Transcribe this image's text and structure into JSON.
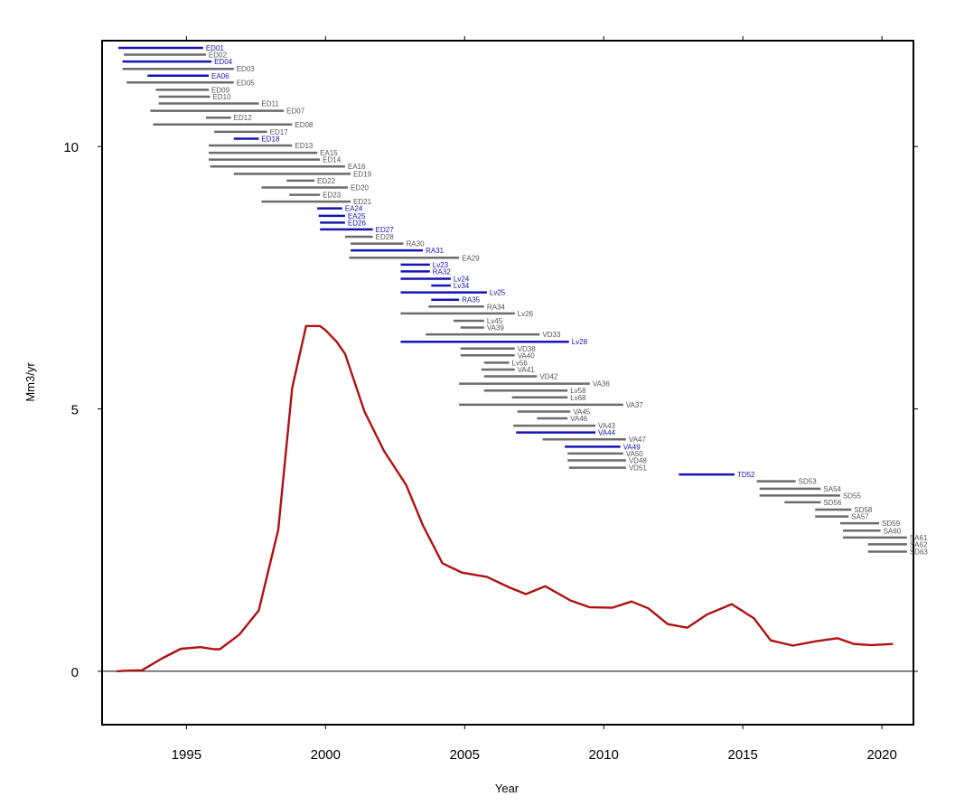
{
  "chart_data": {
    "type": "line",
    "title": "",
    "xlabel": "Year",
    "ylabel": "Mm3/yr",
    "xlim": [
      1992.0,
      2021.1
    ],
    "ylim": [
      -1.0,
      12.0
    ],
    "x_ticks": [
      1995,
      2000,
      2005,
      2010,
      2015,
      2020
    ],
    "x_tick_labels": [
      "1995",
      "2000",
      "2005",
      "2010",
      "2015",
      "2020"
    ],
    "y_ticks": [
      0,
      5,
      10
    ],
    "y_tick_labels": [
      "0",
      "5",
      "10"
    ],
    "zero_line": true,
    "grid": false,
    "colors": {
      "line": "#b01010",
      "blue_interval": "#1414b4",
      "grey_interval": "#6b6b6b",
      "blue_label": "#1414b4",
      "grey_label": "#555555"
    },
    "series": [
      {
        "x": [
          1992.5,
          1992.8,
          1993.4,
          1994.1,
          1994.8,
          1995.5,
          1996.0,
          1996.2,
          1996.9,
          1997.6,
          1998.3,
          1998.8,
          1999.3,
          1999.8,
          2000.0,
          2000.4,
          2000.7,
          2001.4,
          2002.1,
          2002.9,
          2003.5,
          2004.2,
          2004.9,
          2005.8,
          2006.6,
          2007.2,
          2007.9,
          2008.8,
          2009.5,
          2010.3,
          2011.0,
          2011.6,
          2012.3,
          2013.0,
          2013.7,
          2014.6,
          2015.4,
          2016.0,
          2016.8,
          2017.6,
          2018.4,
          2019.0,
          2019.6,
          2020.4
        ],
        "y": [
          0.0,
          0.01,
          0.02,
          0.24,
          0.43,
          0.46,
          0.42,
          0.42,
          0.7,
          1.16,
          2.7,
          5.4,
          6.58,
          6.58,
          6.5,
          6.28,
          6.05,
          4.95,
          4.2,
          3.55,
          2.78,
          2.06,
          1.88,
          1.8,
          1.6,
          1.47,
          1.62,
          1.35,
          1.22,
          1.21,
          1.33,
          1.2,
          0.9,
          0.83,
          1.08,
          1.28,
          1.01,
          0.59,
          0.49,
          0.57,
          0.63,
          0.52,
          0.5,
          0.52
        ]
      }
    ],
    "intervals": [
      {
        "label": "ED01",
        "start": 1992.55,
        "end": 1995.6,
        "y": 11.88,
        "color": "blue"
      },
      {
        "label": "ED02",
        "start": 1992.75,
        "end": 1995.7,
        "y": 11.75,
        "color": "grey"
      },
      {
        "label": "ED04",
        "start": 1992.7,
        "end": 1995.9,
        "y": 11.62,
        "color": "blue"
      },
      {
        "label": "ED03",
        "start": 1992.7,
        "end": 1996.7,
        "y": 11.48,
        "color": "grey"
      },
      {
        "label": "EA06",
        "start": 1993.6,
        "end": 1995.8,
        "y": 11.35,
        "color": "blue"
      },
      {
        "label": "ED05",
        "start": 1992.85,
        "end": 1996.7,
        "y": 11.22,
        "color": "grey"
      },
      {
        "label": "ED09",
        "start": 1993.9,
        "end": 1995.8,
        "y": 11.08,
        "color": "grey"
      },
      {
        "label": "ED10",
        "start": 1994.0,
        "end": 1995.85,
        "y": 10.95,
        "color": "grey"
      },
      {
        "label": "ED11",
        "start": 1994.0,
        "end": 1997.6,
        "y": 10.82,
        "color": "grey"
      },
      {
        "label": "ED07",
        "start": 1993.7,
        "end": 1998.5,
        "y": 10.68,
        "color": "grey"
      },
      {
        "label": "ED12",
        "start": 1995.7,
        "end": 1996.6,
        "y": 10.55,
        "color": "grey"
      },
      {
        "label": "ED08",
        "start": 1993.8,
        "end": 1998.8,
        "y": 10.42,
        "color": "grey"
      },
      {
        "label": "ED17",
        "start": 1996.0,
        "end": 1997.9,
        "y": 10.28,
        "color": "grey"
      },
      {
        "label": "ED18",
        "start": 1996.7,
        "end": 1997.6,
        "y": 10.15,
        "color": "blue"
      },
      {
        "label": "ED13",
        "start": 1995.8,
        "end": 1998.8,
        "y": 10.02,
        "color": "grey"
      },
      {
        "label": "EA15",
        "start": 1995.8,
        "end": 1999.7,
        "y": 9.88,
        "color": "grey"
      },
      {
        "label": "ED14",
        "start": 1995.8,
        "end": 1999.8,
        "y": 9.75,
        "color": "grey"
      },
      {
        "label": "EA16",
        "start": 1995.85,
        "end": 2000.7,
        "y": 9.62,
        "color": "grey"
      },
      {
        "label": "ED19",
        "start": 1996.7,
        "end": 2000.9,
        "y": 9.48,
        "color": "grey"
      },
      {
        "label": "ED22",
        "start": 1998.6,
        "end": 1999.6,
        "y": 9.35,
        "color": "grey"
      },
      {
        "label": "ED20",
        "start": 1997.7,
        "end": 2000.8,
        "y": 9.22,
        "color": "grey"
      },
      {
        "label": "ED23",
        "start": 1998.7,
        "end": 1999.8,
        "y": 9.08,
        "color": "grey"
      },
      {
        "label": "ED21",
        "start": 1997.7,
        "end": 2000.9,
        "y": 8.95,
        "color": "grey"
      },
      {
        "label": "EA24",
        "start": 1999.7,
        "end": 2000.6,
        "y": 8.82,
        "color": "blue"
      },
      {
        "label": "EA25",
        "start": 1999.75,
        "end": 2000.7,
        "y": 8.68,
        "color": "blue"
      },
      {
        "label": "ED26",
        "start": 1999.8,
        "end": 2000.7,
        "y": 8.55,
        "color": "blue"
      },
      {
        "label": "ED27",
        "start": 1999.8,
        "end": 2001.7,
        "y": 8.42,
        "color": "blue"
      },
      {
        "label": "ED28",
        "start": 2000.7,
        "end": 2001.7,
        "y": 8.28,
        "color": "grey"
      },
      {
        "label": "RA30",
        "start": 2000.9,
        "end": 2002.8,
        "y": 8.15,
        "color": "grey"
      },
      {
        "label": "RA31",
        "start": 2000.9,
        "end": 2003.5,
        "y": 8.02,
        "color": "blue"
      },
      {
        "label": "EA29",
        "start": 2000.85,
        "end": 2004.8,
        "y": 7.88,
        "color": "grey"
      },
      {
        "label": "Lv23",
        "start": 2002.7,
        "end": 2003.75,
        "y": 7.75,
        "color": "blue"
      },
      {
        "label": "RA32",
        "start": 2002.7,
        "end": 2003.75,
        "y": 7.62,
        "color": "blue"
      },
      {
        "label": "Lv24",
        "start": 2002.7,
        "end": 2004.5,
        "y": 7.48,
        "color": "blue"
      },
      {
        "label": "Lv34",
        "start": 2003.8,
        "end": 2004.5,
        "y": 7.35,
        "color": "blue"
      },
      {
        "label": "Lv25",
        "start": 2002.7,
        "end": 2005.8,
        "y": 7.22,
        "color": "blue"
      },
      {
        "label": "RA35",
        "start": 2003.8,
        "end": 2004.8,
        "y": 7.08,
        "color": "blue"
      },
      {
        "label": "RA34",
        "start": 2003.7,
        "end": 2005.7,
        "y": 6.95,
        "color": "grey"
      },
      {
        "label": "Lv26",
        "start": 2002.7,
        "end": 2006.8,
        "y": 6.82,
        "color": "grey"
      },
      {
        "label": "Lv45",
        "start": 2004.6,
        "end": 2005.7,
        "y": 6.68,
        "color": "grey"
      },
      {
        "label": "VA39",
        "start": 2004.85,
        "end": 2005.7,
        "y": 6.55,
        "color": "grey"
      },
      {
        "label": "VD33",
        "start": 2003.6,
        "end": 2007.7,
        "y": 6.42,
        "color": "grey"
      },
      {
        "label": "Lv28",
        "start": 2002.7,
        "end": 2008.75,
        "y": 6.28,
        "color": "blue"
      },
      {
        "label": "VD38",
        "start": 2004.85,
        "end": 2006.8,
        "y": 6.15,
        "color": "grey"
      },
      {
        "label": "VA40",
        "start": 2004.85,
        "end": 2006.8,
        "y": 6.02,
        "color": "grey"
      },
      {
        "label": "Lv56",
        "start": 2005.7,
        "end": 2006.6,
        "y": 5.88,
        "color": "grey"
      },
      {
        "label": "VA41",
        "start": 2005.6,
        "end": 2006.8,
        "y": 5.75,
        "color": "grey"
      },
      {
        "label": "VD42",
        "start": 2005.7,
        "end": 2007.6,
        "y": 5.62,
        "color": "grey"
      },
      {
        "label": "VA36",
        "start": 2004.8,
        "end": 2009.5,
        "y": 5.48,
        "color": "grey"
      },
      {
        "label": "Lv58",
        "start": 2005.7,
        "end": 2008.7,
        "y": 5.35,
        "color": "grey"
      },
      {
        "label": "Lv68",
        "start": 2006.7,
        "end": 2008.7,
        "y": 5.22,
        "color": "grey"
      },
      {
        "label": "VA37",
        "start": 2004.8,
        "end": 2010.7,
        "y": 5.08,
        "color": "grey"
      },
      {
        "label": "VA45",
        "start": 2006.9,
        "end": 2008.8,
        "y": 4.95,
        "color": "grey"
      },
      {
        "label": "VA46",
        "start": 2007.6,
        "end": 2008.7,
        "y": 4.82,
        "color": "grey"
      },
      {
        "label": "VA43",
        "start": 2006.75,
        "end": 2009.7,
        "y": 4.68,
        "color": "grey"
      },
      {
        "label": "VA44",
        "start": 2006.85,
        "end": 2009.7,
        "y": 4.55,
        "color": "blue"
      },
      {
        "label": "VA47",
        "start": 2007.8,
        "end": 2010.8,
        "y": 4.42,
        "color": "grey"
      },
      {
        "label": "VA49",
        "start": 2008.6,
        "end": 2010.6,
        "y": 4.28,
        "color": "blue"
      },
      {
        "label": "VA50",
        "start": 2008.7,
        "end": 2010.7,
        "y": 4.15,
        "color": "grey"
      },
      {
        "label": "VD48",
        "start": 2008.7,
        "end": 2010.8,
        "y": 4.02,
        "color": "grey"
      },
      {
        "label": "VD51",
        "start": 2008.75,
        "end": 2010.8,
        "y": 3.88,
        "color": "grey"
      },
      {
        "label": "TD52",
        "start": 2012.7,
        "end": 2014.7,
        "y": 3.75,
        "color": "blue"
      },
      {
        "label": "SD53",
        "start": 2015.5,
        "end": 2016.9,
        "y": 3.62,
        "color": "grey"
      },
      {
        "label": "SA54",
        "start": 2015.6,
        "end": 2017.8,
        "y": 3.48,
        "color": "grey"
      },
      {
        "label": "SD55",
        "start": 2015.6,
        "end": 2018.5,
        "y": 3.35,
        "color": "grey"
      },
      {
        "label": "SD56",
        "start": 2016.5,
        "end": 2017.8,
        "y": 3.22,
        "color": "grey"
      },
      {
        "label": "SD58",
        "start": 2017.6,
        "end": 2018.9,
        "y": 3.08,
        "color": "grey"
      },
      {
        "label": "SA57",
        "start": 2017.6,
        "end": 2018.8,
        "y": 2.95,
        "color": "grey"
      },
      {
        "label": "SD59",
        "start": 2018.5,
        "end": 2019.9,
        "y": 2.82,
        "color": "grey"
      },
      {
        "label": "SA60",
        "start": 2018.6,
        "end": 2019.95,
        "y": 2.68,
        "color": "grey"
      },
      {
        "label": "SA61",
        "start": 2018.6,
        "end": 2020.9,
        "y": 2.55,
        "color": "grey"
      },
      {
        "label": "SA62",
        "start": 2019.5,
        "end": 2020.9,
        "y": 2.42,
        "color": "grey"
      },
      {
        "label": "SD63",
        "start": 2019.5,
        "end": 2020.9,
        "y": 2.28,
        "color": "grey"
      }
    ]
  }
}
